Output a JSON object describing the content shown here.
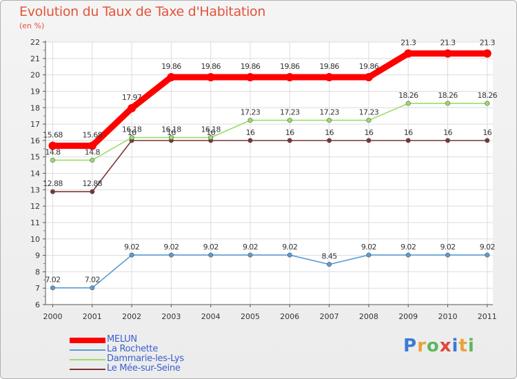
{
  "title": "Evolution du Taux de Taxe d'Habitation",
  "unit": "(en %)",
  "chart_data": {
    "type": "line",
    "title": "Evolution du Taux de Taxe d'Habitation",
    "ylabel": "(en %)",
    "xlabel": "",
    "ylim": [
      6,
      22
    ],
    "grid": true,
    "categories": [
      "2000",
      "2001",
      "2002",
      "2003",
      "2004",
      "2005",
      "2006",
      "2007",
      "2008",
      "2009",
      "2010",
      "2011"
    ],
    "yticks": [
      6,
      7,
      8,
      9,
      10,
      11,
      12,
      13,
      14,
      15,
      16,
      17,
      18,
      19,
      20,
      21,
      22
    ],
    "series": [
      {
        "name": "MELUN",
        "color": "#ff0000",
        "labelColor": "#333333",
        "values": [
          15.68,
          15.68,
          17.97,
          19.86,
          19.86,
          19.86,
          19.86,
          19.86,
          19.86,
          21.3,
          21.3,
          21.3
        ],
        "labels": [
          "15.68",
          "15.68",
          "17.97",
          "19.86",
          "19.86",
          "19.86",
          "19.86",
          "19.86",
          "19.86",
          "21.3",
          "21.3",
          "21.3"
        ]
      },
      {
        "name": "La Rochette",
        "color": "#5b9bd5",
        "labelColor": "#333333",
        "values": [
          7.02,
          7.02,
          9.02,
          9.02,
          9.02,
          9.02,
          9.02,
          8.45,
          9.02,
          9.02,
          9.02,
          9.02
        ],
        "labels": [
          "7.02",
          "7.02",
          "9.02",
          "9.02",
          "9.02",
          "9.02",
          "9.02",
          "8.45",
          "9.02",
          "9.02",
          "9.02",
          "9.02"
        ]
      },
      {
        "name": "Dammarie-les-Lys",
        "color": "#99dd66",
        "labelColor": "#333333",
        "values": [
          14.8,
          14.8,
          16.18,
          16.18,
          16.18,
          17.23,
          17.23,
          17.23,
          17.23,
          18.26,
          18.26,
          18.26
        ],
        "labels": [
          "14.8",
          "14.8",
          "16.18",
          "16.18",
          "16.18",
          "17.23",
          "17.23",
          "17.23",
          "17.23",
          "18.26",
          "18.26",
          "18.26"
        ]
      },
      {
        "name": "Le Mée-sur-Seine",
        "color": "#7a3535",
        "labelColor": "#333333",
        "values": [
          12.88,
          12.88,
          16,
          16,
          16,
          16,
          16,
          16,
          16,
          16,
          16,
          16
        ],
        "labels": [
          "12.88",
          "12.88",
          "16",
          "16",
          "16",
          "16",
          "16",
          "16",
          "16",
          "16",
          "16",
          "16"
        ]
      }
    ]
  },
  "legend": [
    {
      "label": "MELUN",
      "color": "#ff0000"
    },
    {
      "label": "La Rochette",
      "color": "#5b9bd5"
    },
    {
      "label": "Dammarie-les-Lys",
      "color": "#99dd66"
    },
    {
      "label": "Le Mée-sur-Seine",
      "color": "#7a3535"
    }
  ],
  "brand": {
    "text": "Proxiti",
    "letters": [
      {
        "ch": "P",
        "color": "#3a7bd5"
      },
      {
        "ch": "r",
        "color": "#e8a23a"
      },
      {
        "ch": "o",
        "color": "#5cb85c"
      },
      {
        "ch": "x",
        "color": "#e0463a"
      },
      {
        "ch": "i",
        "color": "#3a7bd5"
      },
      {
        "ch": "t",
        "color": "#e8a23a"
      },
      {
        "ch": "i",
        "color": "#5cb85c"
      }
    ]
  }
}
